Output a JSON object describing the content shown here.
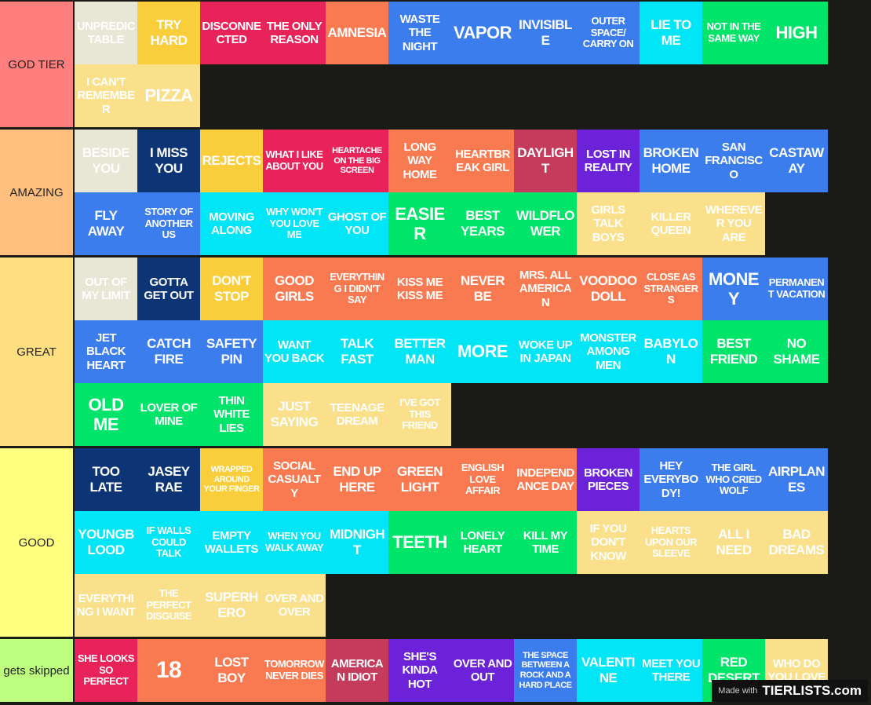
{
  "tiers": [
    {
      "label": "GOD TIER",
      "color": "#ff7f7f",
      "items": [
        {
          "text": "UNPREDICTABLE",
          "color": "#e8e6d4"
        },
        {
          "text": "TRY HARD",
          "color": "#f9ce3a"
        },
        {
          "text": "DISCONNECTED",
          "color": "#e8235a"
        },
        {
          "text": "THE ONLY REASON",
          "color": "#e8235a"
        },
        {
          "text": "AMNESIA",
          "color": "#f97a50"
        },
        {
          "text": "WASTE THE NIGHT",
          "color": "#3b7ded"
        },
        {
          "text": "VAPOR",
          "color": "#3b7ded"
        },
        {
          "text": "INVISIBLE",
          "color": "#3b7ded"
        },
        {
          "text": "OUTER SPACE/ CARRY ON",
          "color": "#3b7ded"
        },
        {
          "text": "LIE TO ME",
          "color": "#00e6f7"
        },
        {
          "text": "NOT IN THE SAME WAY",
          "color": "#00e46a"
        },
        {
          "text": "HIGH",
          "color": "#00e46a"
        },
        {
          "text": "I CAN'T REMEMBER",
          "color": "#fbe08c"
        },
        {
          "text": "PIZZA",
          "color": "#fbe08c"
        }
      ]
    },
    {
      "label": "AMAZING",
      "color": "#ffbf7f",
      "items": [
        {
          "text": "BESIDE YOU",
          "color": "#e8e6d4"
        },
        {
          "text": "I MISS YOU",
          "color": "#0d3576"
        },
        {
          "text": "REJECTS",
          "color": "#f9ce3a"
        },
        {
          "text": "WHAT I LIKE ABOUT YOU",
          "color": "#e8235a"
        },
        {
          "text": "HEARTACHE ON THE BIG SCREEN",
          "color": "#e8235a"
        },
        {
          "text": "LONG WAY HOME",
          "color": "#f97a50"
        },
        {
          "text": "HEARTBREAK GIRL",
          "color": "#f97a50"
        },
        {
          "text": "DAYLIGHT",
          "color": "#c43b5b"
        },
        {
          "text": "LOST IN REALITY",
          "color": "#6b22d8"
        },
        {
          "text": "BROKEN HOME",
          "color": "#3b7ded"
        },
        {
          "text": "SAN FRANCISCO",
          "color": "#3b7ded"
        },
        {
          "text": "CASTAWAY",
          "color": "#3b7ded"
        },
        {
          "text": "FLY AWAY",
          "color": "#3b7ded"
        },
        {
          "text": "STORY OF ANOTHER US",
          "color": "#3b7ded"
        },
        {
          "text": "MOVING ALONG",
          "color": "#00e6f7"
        },
        {
          "text": "WHY WON'T YOU LOVE ME",
          "color": "#00e6f7"
        },
        {
          "text": "GHOST OF YOU",
          "color": "#00e6f7"
        },
        {
          "text": "EASIER",
          "color": "#00e46a"
        },
        {
          "text": "BEST YEARS",
          "color": "#00e46a"
        },
        {
          "text": "WILDFLOWER",
          "color": "#00e46a"
        },
        {
          "text": "GIRLS TALK BOYS",
          "color": "#fbe08c"
        },
        {
          "text": "KILLER QUEEN",
          "color": "#fbe08c"
        },
        {
          "text": "WHEREVER YOU ARE",
          "color": "#fbe08c"
        }
      ]
    },
    {
      "label": "GREAT",
      "color": "#ffdf7f",
      "items": [
        {
          "text": "OUT OF MY LIMIT",
          "color": "#e8e6d4"
        },
        {
          "text": "GOTTA GET OUT",
          "color": "#0d3576"
        },
        {
          "text": "DON'T STOP",
          "color": "#f9ce3a"
        },
        {
          "text": "GOOD GIRLS",
          "color": "#f97a50"
        },
        {
          "text": "EVERYTHING I DIDN'T SAY",
          "color": "#f97a50"
        },
        {
          "text": "KISS ME KISS ME",
          "color": "#f97a50"
        },
        {
          "text": "NEVER BE",
          "color": "#f97a50"
        },
        {
          "text": "MRS. ALL AMERICAN",
          "color": "#f97a50"
        },
        {
          "text": "VOODOO DOLL",
          "color": "#f97a50"
        },
        {
          "text": "CLOSE AS STRANGERS",
          "color": "#f97a50"
        },
        {
          "text": "MONEY",
          "color": "#3b7ded"
        },
        {
          "text": "PERMANENT VACATION",
          "color": "#3b7ded"
        },
        {
          "text": "JET BLACK HEART",
          "color": "#3b7ded"
        },
        {
          "text": "CATCH FIRE",
          "color": "#3b7ded"
        },
        {
          "text": "SAFETY PIN",
          "color": "#3b7ded"
        },
        {
          "text": "WANT YOU BACK",
          "color": "#00e6f7"
        },
        {
          "text": "TALK FAST",
          "color": "#00e6f7"
        },
        {
          "text": "BETTER MAN",
          "color": "#00e6f7"
        },
        {
          "text": "MORE",
          "color": "#00e6f7"
        },
        {
          "text": "WOKE UP IN JAPAN",
          "color": "#00e6f7"
        },
        {
          "text": "MONSTER AMONG MEN",
          "color": "#00e6f7"
        },
        {
          "text": "BABYLON",
          "color": "#00e6f7"
        },
        {
          "text": "BEST FRIEND",
          "color": "#00e46a"
        },
        {
          "text": "NO SHAME",
          "color": "#00e46a"
        },
        {
          "text": "OLD ME",
          "color": "#00e46a"
        },
        {
          "text": "LOVER OF MINE",
          "color": "#00e46a"
        },
        {
          "text": "THIN WHITE LIES",
          "color": "#00e46a"
        },
        {
          "text": "JUST SAYING",
          "color": "#fbe08c"
        },
        {
          "text": "TEENAGE DREAM",
          "color": "#fbe08c"
        },
        {
          "text": "I'VE GOT THIS FRIEND",
          "color": "#fbe08c"
        }
      ]
    },
    {
      "label": "GOOD",
      "color": "#ffff7f",
      "items": [
        {
          "text": "TOO LATE",
          "color": "#0d3576"
        },
        {
          "text": "JASEY RAE",
          "color": "#0d3576"
        },
        {
          "text": "WRAPPED AROUND YOUR FINGER",
          "color": "#f9ce3a"
        },
        {
          "text": "SOCIAL CASUALTY",
          "color": "#f97a50"
        },
        {
          "text": "END UP HERE",
          "color": "#f97a50"
        },
        {
          "text": "GREEN LIGHT",
          "color": "#f97a50"
        },
        {
          "text": "ENGLISH LOVE AFFAIR",
          "color": "#f97a50"
        },
        {
          "text": "INDEPENDANCE DAY",
          "color": "#f97a50"
        },
        {
          "text": "BROKEN PIECES",
          "color": "#6b22d8"
        },
        {
          "text": "HEY EVERYBODY!",
          "color": "#3b7ded"
        },
        {
          "text": "THE GIRL WHO CRIED WOLF",
          "color": "#3b7ded"
        },
        {
          "text": "AIRPLANES",
          "color": "#3b7ded"
        },
        {
          "text": "YOUNGBLOOD",
          "color": "#00e6f7"
        },
        {
          "text": "IF WALLS COULD TALK",
          "color": "#00e6f7"
        },
        {
          "text": "EMPTY WALLETS",
          "color": "#00e6f7"
        },
        {
          "text": "WHEN YOU WALK AWAY",
          "color": "#00e6f7"
        },
        {
          "text": "MIDNIGHT",
          "color": "#00e6f7"
        },
        {
          "text": "TEETH",
          "color": "#00e46a"
        },
        {
          "text": "LONELY HEART",
          "color": "#00e46a"
        },
        {
          "text": "KILL MY TIME",
          "color": "#00e46a"
        },
        {
          "text": "IF YOU DON'T KNOW",
          "color": "#fbe08c"
        },
        {
          "text": "HEARTS UPON OUR SLEEVE",
          "color": "#fbe08c"
        },
        {
          "text": "ALL I NEED",
          "color": "#fbe08c"
        },
        {
          "text": "BAD DREAMS",
          "color": "#fbe08c"
        },
        {
          "text": "EVERYTHING I WANT",
          "color": "#fbe08c"
        },
        {
          "text": "THE PERFECT DISGUISE",
          "color": "#fbe08c"
        },
        {
          "text": "SUPERHERO",
          "color": "#fbe08c"
        },
        {
          "text": "OVER AND OVER",
          "color": "#fbe08c"
        }
      ]
    },
    {
      "label": "gets skipped",
      "color": "#bfff7f",
      "items": [
        {
          "text": "SHE LOOKS SO PERFECT",
          "color": "#e8235a"
        },
        {
          "text": "18",
          "color": "#f97a50"
        },
        {
          "text": "LOST BOY",
          "color": "#f97a50"
        },
        {
          "text": "TOMORROW NEVER DIES",
          "color": "#f97a50"
        },
        {
          "text": "AMERICAN IDIOT",
          "color": "#c43b5b"
        },
        {
          "text": "SHE'S KINDA HOT",
          "color": "#6b22d8"
        },
        {
          "text": "OVER AND OUT",
          "color": "#6b22d8"
        },
        {
          "text": "THE SPACE BETWEEN A ROCK AND A HARD PLACE",
          "color": "#3b7ded"
        },
        {
          "text": "VALENTINE",
          "color": "#00e6f7"
        },
        {
          "text": "MEET YOU THERE",
          "color": "#00e6f7"
        },
        {
          "text": "RED DESERT",
          "color": "#00e46a"
        },
        {
          "text": "WHO DO YOU LOVE",
          "color": "#fbe08c"
        }
      ]
    }
  ],
  "watermark": {
    "prefix": "Made with",
    "brand": "TIERLISTS.com"
  }
}
